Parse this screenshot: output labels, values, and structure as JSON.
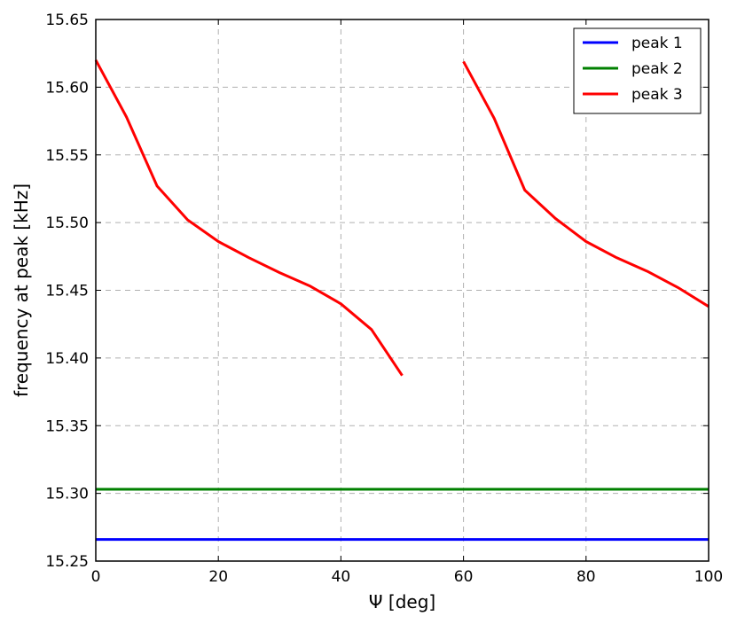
{
  "chart_data": {
    "type": "line",
    "title": "",
    "xlabel": "Ψ [deg]",
    "ylabel": "frequency at peak [kHz]",
    "xlim": [
      0,
      100
    ],
    "ylim": [
      15.25,
      15.65
    ],
    "xticks": [
      0,
      20,
      40,
      60,
      80,
      100
    ],
    "xtick_labels": [
      "0",
      "20",
      "40",
      "60",
      "80",
      "100"
    ],
    "yticks": [
      15.25,
      15.3,
      15.35,
      15.4,
      15.45,
      15.5,
      15.55,
      15.6,
      15.65
    ],
    "ytick_labels": [
      "15.25",
      "15.30",
      "15.35",
      "15.40",
      "15.45",
      "15.50",
      "15.55",
      "15.60",
      "15.65"
    ],
    "grid": true,
    "legend_position": "top-right",
    "series": [
      {
        "name": "peak 1",
        "color": "#0000ff",
        "segments": [
          {
            "x": [
              0,
              100
            ],
            "y": [
              15.266,
              15.266
            ]
          }
        ]
      },
      {
        "name": "peak 2",
        "color": "#008000",
        "segments": [
          {
            "x": [
              0,
              100
            ],
            "y": [
              15.303,
              15.303
            ]
          }
        ]
      },
      {
        "name": "peak 3",
        "color": "#ff0000",
        "segments": [
          {
            "x": [
              0,
              5,
              10,
              15,
              20,
              25,
              30,
              35,
              40,
              45,
              50
            ],
            "y": [
              15.62,
              15.578,
              15.527,
              15.502,
              15.486,
              15.474,
              15.463,
              15.453,
              15.44,
              15.421,
              15.387
            ]
          },
          {
            "x": [
              60,
              65,
              70,
              75,
              80,
              85,
              90,
              95,
              100
            ],
            "y": [
              15.619,
              15.577,
              15.524,
              15.503,
              15.486,
              15.474,
              15.464,
              15.452,
              15.438
            ]
          }
        ]
      }
    ]
  }
}
